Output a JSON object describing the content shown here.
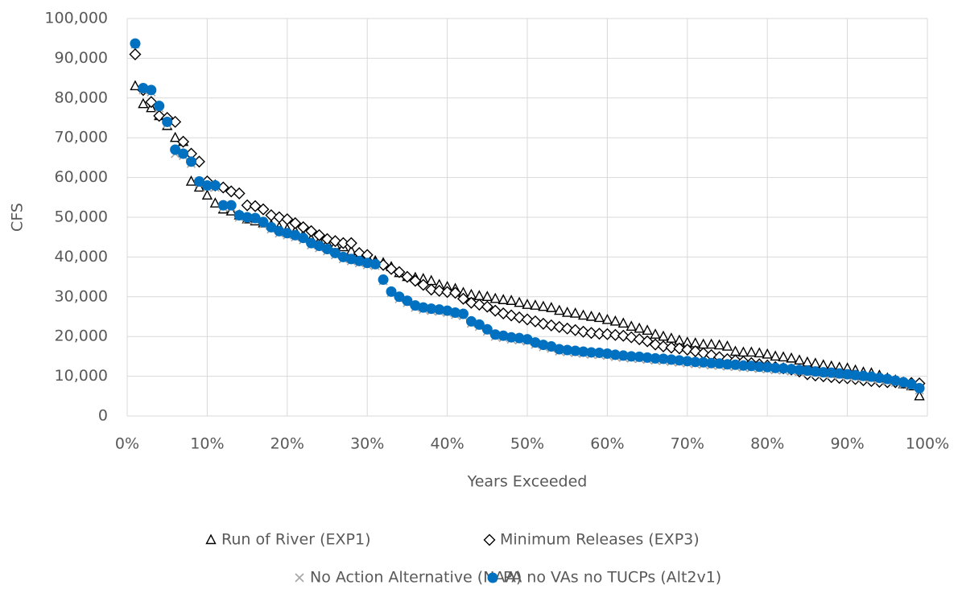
{
  "chart_data": {
    "type": "scatter",
    "x_label": "Years Exceeded",
    "y_label": "CFS",
    "xlim": [
      0,
      100
    ],
    "ylim": [
      0,
      100000
    ],
    "xticks": [
      {
        "value": 0,
        "label": "0%"
      },
      {
        "value": 10,
        "label": "10%"
      },
      {
        "value": 20,
        "label": "20%"
      },
      {
        "value": 30,
        "label": "30%"
      },
      {
        "value": 40,
        "label": "40%"
      },
      {
        "value": 50,
        "label": "50%"
      },
      {
        "value": 60,
        "label": "60%"
      },
      {
        "value": 70,
        "label": "70%"
      },
      {
        "value": 80,
        "label": "80%"
      },
      {
        "value": 90,
        "label": "90%"
      },
      {
        "value": 100,
        "label": "100%"
      }
    ],
    "yticks": [
      0,
      {
        "value": 10000,
        "label": "10,000"
      },
      {
        "value": 20000,
        "label": "20,000"
      },
      {
        "value": 30000,
        "label": "30,000"
      },
      {
        "value": 40000,
        "label": "40,000"
      },
      {
        "value": 50000,
        "label": "50,000"
      },
      {
        "value": 60000,
        "label": "60,000"
      },
      {
        "value": 70000,
        "label": "70,000"
      },
      {
        "value": 80000,
        "label": "80,000"
      },
      {
        "value": 90000,
        "label": "90,000"
      },
      {
        "value": 100000,
        "label": "100,000"
      }
    ],
    "grid": true,
    "legend": "bottom",
    "x": [
      1,
      2,
      3,
      4,
      5,
      6,
      7,
      8,
      9,
      10,
      11,
      12,
      13,
      14,
      15,
      16,
      17,
      18,
      19,
      20,
      21,
      22,
      23,
      24,
      25,
      26,
      27,
      28,
      29,
      30,
      31,
      32,
      33,
      34,
      35,
      36,
      37,
      38,
      39,
      40,
      41,
      42,
      43,
      44,
      45,
      46,
      47,
      48,
      49,
      50,
      51,
      52,
      53,
      54,
      55,
      56,
      57,
      58,
      59,
      60,
      61,
      62,
      63,
      64,
      65,
      66,
      67,
      68,
      69,
      70,
      71,
      72,
      73,
      74,
      75,
      76,
      77,
      78,
      79,
      80,
      81,
      82,
      83,
      84,
      85,
      86,
      87,
      88,
      89,
      90,
      91,
      92,
      93,
      94,
      95,
      96,
      97,
      98,
      99
    ],
    "series": [
      {
        "name": "Run of River (EXP1)",
        "color": "#000000",
        "marker": "triangle",
        "values": [
          83000,
          78500,
          77500,
          75500,
          73000,
          70000,
          69000,
          59000,
          57500,
          55500,
          53500,
          52000,
          51500,
          50500,
          49500,
          49000,
          48500,
          48000,
          47500,
          47000,
          46500,
          45500,
          44500,
          44000,
          43500,
          43000,
          42500,
          41500,
          40500,
          40000,
          39000,
          38500,
          37500,
          36000,
          35000,
          34800,
          34500,
          34000,
          33000,
          32500,
          32000,
          31000,
          30500,
          30200,
          30000,
          29500,
          29200,
          29000,
          28500,
          28000,
          27800,
          27500,
          27200,
          26500,
          26000,
          25800,
          25300,
          25000,
          24700,
          24200,
          23800,
          23300,
          22500,
          22000,
          21500,
          20500,
          20000,
          19500,
          19000,
          18500,
          18300,
          18000,
          18000,
          17800,
          17500,
          16200,
          16000,
          16000,
          15800,
          15500,
          15000,
          14800,
          14500,
          14000,
          13500,
          13200,
          12800,
          12500,
          12200,
          12000,
          11500,
          11000,
          10800,
          10200,
          9500,
          9000,
          8000,
          7500,
          5000
        ]
      },
      {
        "name": "Minimum Releases (EXP3)",
        "color": "#000000",
        "marker": "diamond",
        "values": [
          91000,
          82000,
          79000,
          75500,
          75000,
          74000,
          69000,
          66000,
          64000,
          59000,
          58000,
          57500,
          56500,
          56000,
          53000,
          52800,
          52000,
          50500,
          50000,
          49500,
          48500,
          47500,
          46500,
          45500,
          44500,
          44000,
          43500,
          43500,
          41000,
          40500,
          38500,
          38000,
          37000,
          36200,
          35000,
          34000,
          33000,
          31800,
          31500,
          31200,
          31000,
          29500,
          28500,
          28000,
          27500,
          26500,
          25800,
          25300,
          24800,
          24300,
          23800,
          23200,
          22800,
          22400,
          22000,
          21600,
          21200,
          20900,
          20700,
          20600,
          20400,
          20200,
          19800,
          19300,
          18800,
          18000,
          17500,
          17200,
          17000,
          16700,
          16300,
          15800,
          15300,
          14800,
          14300,
          14000,
          13700,
          13300,
          13000,
          12700,
          12300,
          12000,
          11700,
          11200,
          10500,
          10200,
          10000,
          9800,
          9600,
          9500,
          9300,
          9000,
          8800,
          8600,
          8500,
          8500,
          8400,
          8300,
          8200
        ]
      },
      {
        "name": "No Action Alternative (NAA)",
        "color": "#a6a6a6",
        "marker": "cross",
        "values": [
          93500,
          82000,
          81500,
          77500,
          73500,
          66000,
          65500,
          63500,
          58500,
          57500,
          57500,
          52500,
          52500,
          50000,
          49500,
          49300,
          48300,
          47000,
          46000,
          45500,
          45000,
          44300,
          43000,
          42300,
          41500,
          40500,
          39500,
          39000,
          38500,
          38000,
          37800,
          34000,
          31000,
          29500,
          28500,
          27300,
          26800,
          26500,
          26300,
          26000,
          25500,
          25200,
          23300,
          22500,
          21300,
          20000,
          19700,
          19300,
          19100,
          18800,
          18000,
          17400,
          17000,
          16300,
          16100,
          15900,
          15700,
          15500,
          15400,
          15200,
          14900,
          14700,
          14500,
          14400,
          14200,
          14000,
          13900,
          13700,
          13500,
          13300,
          13100,
          13000,
          12800,
          12700,
          12500,
          12400,
          12200,
          12100,
          11900,
          11800,
          11600,
          11500,
          11300,
          11100,
          10900,
          10700,
          10500,
          10400,
          10200,
          10000,
          9800,
          9600,
          9400,
          9100,
          8800,
          8400,
          8000,
          7500,
          6500
        ]
      },
      {
        "name": "PA no VAs no TUCPs (Alt2v1)",
        "color": "#0070c0",
        "marker": "circle",
        "values": [
          93700,
          82500,
          82000,
          78000,
          74000,
          67000,
          66000,
          64000,
          59000,
          58000,
          58000,
          53000,
          53000,
          50500,
          50000,
          49800,
          48800,
          47500,
          46500,
          46000,
          45500,
          44800,
          43500,
          42800,
          42000,
          41000,
          40000,
          39500,
          39000,
          38500,
          38200,
          34300,
          31300,
          30000,
          29000,
          27800,
          27300,
          27000,
          26800,
          26500,
          26000,
          25700,
          23800,
          23000,
          21800,
          20500,
          20200,
          19800,
          19600,
          19300,
          18500,
          17900,
          17500,
          16800,
          16600,
          16400,
          16200,
          16000,
          15900,
          15700,
          15400,
          15200,
          15000,
          14900,
          14700,
          14500,
          14400,
          14200,
          14000,
          13800,
          13600,
          13500,
          13300,
          13200,
          13000,
          12900,
          12700,
          12600,
          12400,
          12300,
          12100,
          12000,
          11800,
          11600,
          11400,
          11200,
          11000,
          10900,
          10700,
          10500,
          10300,
          10100,
          9900,
          9600,
          9300,
          8900,
          8500,
          8000,
          7000
        ]
      }
    ]
  }
}
